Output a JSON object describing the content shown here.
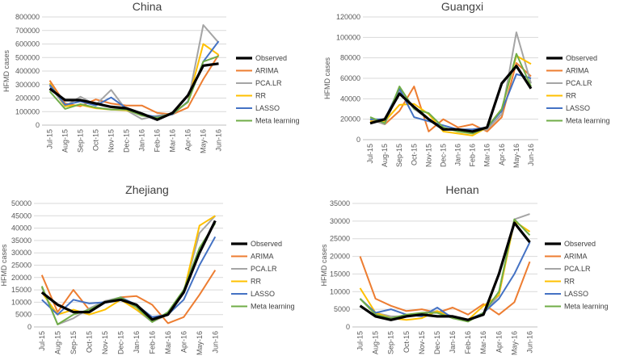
{
  "series_colors": {
    "Observed": "#000000",
    "ARIMA": "#ED7D31",
    "PCA.LR": "#A5A5A5",
    "RR": "#FFC000",
    "LASSO": "#4472C4",
    "Meta learning": "#70AD47"
  },
  "chart_data": [
    {
      "type": "line",
      "title": "China",
      "xlabel": "",
      "ylabel": "HFMD cases",
      "ylim": [
        0,
        800000
      ],
      "yticks": [
        0,
        100000,
        200000,
        300000,
        400000,
        500000,
        600000,
        700000,
        800000
      ],
      "categories": [
        "Jul-15",
        "Aug-15",
        "Sep-15",
        "Oct-15",
        "Nov-15",
        "Dec-15",
        "Jan-16",
        "Feb-16",
        "Mar-16",
        "Apr-16",
        "May-16",
        "Jun-16"
      ],
      "legend": [
        "Observed",
        "ARIMA",
        "PCA.LR",
        "RR",
        "LASSO",
        "Meta learning"
      ],
      "series": [
        {
          "name": "Observed",
          "values": [
            270000,
            185000,
            185000,
            160000,
            135000,
            125000,
            85000,
            40000,
            90000,
            220000,
            440000,
            455000
          ]
        },
        {
          "name": "ARIMA",
          "values": [
            330000,
            160000,
            140000,
            190000,
            160000,
            145000,
            145000,
            90000,
            80000,
            130000,
            340000,
            520000
          ]
        },
        {
          "name": "PCA.LR",
          "values": [
            290000,
            140000,
            210000,
            150000,
            260000,
            110000,
            45000,
            70000,
            85000,
            170000,
            740000,
            610000
          ]
        },
        {
          "name": "RR",
          "values": [
            310000,
            140000,
            150000,
            125000,
            115000,
            110000,
            80000,
            55000,
            90000,
            170000,
            600000,
            520000
          ]
        },
        {
          "name": "LASSO",
          "values": [
            300000,
            150000,
            175000,
            145000,
            205000,
            125000,
            80000,
            60000,
            80000,
            175000,
            470000,
            620000
          ]
        },
        {
          "name": "Meta learning",
          "values": [
            250000,
            120000,
            155000,
            130000,
            115000,
            115000,
            70000,
            55000,
            85000,
            170000,
            470000,
            510000
          ]
        }
      ]
    },
    {
      "type": "line",
      "title": "Guangxi",
      "xlabel": "",
      "ylabel": "HFMD cases",
      "ylim": [
        0,
        120000
      ],
      "yticks": [
        0,
        20000,
        40000,
        60000,
        80000,
        100000,
        120000
      ],
      "categories": [
        "Jul-15",
        "Aug-15",
        "Sep-15",
        "Oct-15",
        "Nov-15",
        "Dec-15",
        "Jan-16",
        "Feb-16",
        "Mar-16",
        "Apr-16",
        "May-16",
        "Jun-16"
      ],
      "legend": [
        "Observed",
        "ARIMA",
        "PCA.LR",
        "RR",
        "LASSO",
        "Meta learning"
      ],
      "series": [
        {
          "name": "Observed",
          "values": [
            16000,
            20000,
            45000,
            32000,
            20000,
            10000,
            10000,
            8000,
            12000,
            55000,
            72000,
            50000
          ]
        },
        {
          "name": "ARIMA",
          "values": [
            20000,
            15000,
            28000,
            52000,
            8000,
            20000,
            12000,
            15000,
            8000,
            22000,
            75000,
            62000
          ]
        },
        {
          "name": "PCA.LR",
          "values": [
            20000,
            15000,
            48000,
            30000,
            20000,
            10000,
            10000,
            8000,
            10000,
            25000,
            105000,
            55000
          ]
        },
        {
          "name": "RR",
          "values": [
            18000,
            18000,
            34000,
            35000,
            25000,
            8000,
            6000,
            4000,
            12000,
            30000,
            82000,
            74000
          ]
        },
        {
          "name": "LASSO",
          "values": [
            20000,
            20000,
            50000,
            22000,
            18000,
            14000,
            10000,
            10000,
            12000,
            28000,
            64000,
            60000
          ]
        },
        {
          "name": "Meta learning",
          "values": [
            22000,
            16000,
            52000,
            30000,
            26000,
            12000,
            8000,
            6000,
            12000,
            30000,
            84000,
            52000
          ]
        }
      ]
    },
    {
      "type": "line",
      "title": "Zhejiang",
      "xlabel": "",
      "ylabel": "HFMD cases",
      "ylim": [
        0,
        50000
      ],
      "yticks": [
        0,
        5000,
        10000,
        15000,
        20000,
        25000,
        30000,
        35000,
        40000,
        45000,
        50000
      ],
      "categories": [
        "Jul-15",
        "Aug-15",
        "Sep-15",
        "Oct-15",
        "Nov-15",
        "Dec-15",
        "Jan-16",
        "Feb-16",
        "Mar-16",
        "Apr-16",
        "May-16",
        "Jun-16"
      ],
      "legend": [
        "Observed",
        "ARIMA",
        "PCA.LR",
        "RR",
        "LASSO",
        "Meta learning"
      ],
      "series": [
        {
          "name": "Observed",
          "values": [
            14000,
            9000,
            6000,
            6000,
            10000,
            11000,
            9000,
            3000,
            5000,
            14000,
            30000,
            43000
          ]
        },
        {
          "name": "ARIMA",
          "values": [
            21000,
            6000,
            15000,
            7000,
            10000,
            12000,
            12500,
            9000,
            1500,
            4000,
            13000,
            23000
          ]
        },
        {
          "name": "PCA.LR",
          "values": [
            16000,
            1000,
            3500,
            7500,
            10500,
            12000,
            7000,
            2000,
            5000,
            14000,
            38000,
            45000
          ]
        },
        {
          "name": "RR",
          "values": [
            14000,
            5000,
            7000,
            5000,
            7000,
            11000,
            7000,
            2500,
            5000,
            14000,
            41000,
            45000
          ]
        },
        {
          "name": "LASSO",
          "values": [
            11000,
            5000,
            11000,
            9500,
            10000,
            12000,
            9000,
            4000,
            5000,
            11000,
            25000,
            36500
          ]
        },
        {
          "name": "Meta learning",
          "values": [
            16500,
            1000,
            5000,
            7000,
            10000,
            12000,
            8000,
            2000,
            6000,
            15000,
            32000,
            42000
          ]
        }
      ]
    },
    {
      "type": "line",
      "title": "Henan",
      "xlabel": "",
      "ylabel": "HFMD cases",
      "ylim": [
        0,
        35000
      ],
      "yticks": [
        0,
        5000,
        10000,
        15000,
        20000,
        25000,
        30000,
        35000
      ],
      "categories": [
        "Jul-15",
        "Aug-15",
        "Sep-15",
        "Oct-15",
        "Nov-15",
        "Dec-15",
        "Jan-16",
        "Feb-16",
        "Mar-16",
        "Apr-16",
        "May-16",
        "Jun-16"
      ],
      "legend": [
        "Observed",
        "ARIMA",
        "PCA.LR",
        "RR",
        "LASSO",
        "Meta learning"
      ],
      "series": [
        {
          "name": "Observed",
          "values": [
            6000,
            3000,
            2000,
            3000,
            3500,
            3000,
            3000,
            2000,
            3500,
            15000,
            29500,
            24000
          ]
        },
        {
          "name": "ARIMA",
          "values": [
            20000,
            8000,
            6000,
            4500,
            5000,
            4000,
            5500,
            3500,
            6500,
            3500,
            7000,
            18500
          ]
        },
        {
          "name": "PCA.LR",
          "values": [
            8000,
            4000,
            3000,
            3000,
            4000,
            4500,
            3000,
            2000,
            4000,
            9000,
            30500,
            32000
          ]
        },
        {
          "name": "RR",
          "values": [
            11000,
            4000,
            2500,
            2000,
            2500,
            4500,
            2500,
            2000,
            6000,
            9000,
            30000,
            27000
          ]
        },
        {
          "name": "LASSO",
          "values": [
            8000,
            4000,
            5000,
            3500,
            3000,
            5500,
            2500,
            2000,
            4000,
            8000,
            15000,
            24000
          ]
        },
        {
          "name": "Meta learning",
          "values": [
            8000,
            3500,
            2500,
            3500,
            4000,
            4000,
            2500,
            1500,
            4000,
            10000,
            30500,
            26000
          ]
        }
      ]
    }
  ]
}
